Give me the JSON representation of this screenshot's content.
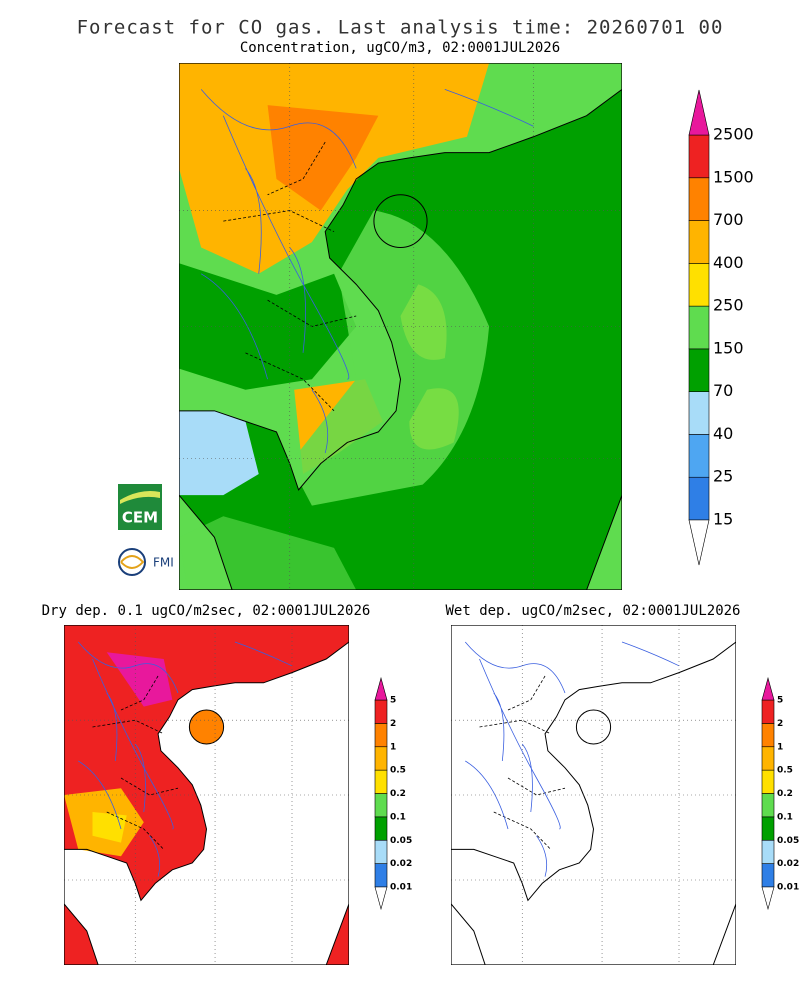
{
  "title": "Forecast for CO gas. Last analysis time: 20260701 00",
  "logos": [
    "CEM",
    "FMI"
  ],
  "panels": [
    {
      "title": "Concentration, ugCO/m3, 02:0001JUL2026",
      "legend": {
        "labels": [
          15,
          25,
          40,
          70,
          150,
          250,
          400,
          700,
          1500,
          2500
        ],
        "colors": [
          "#2f7fe6",
          "#4ea6f2",
          "#a8dcf8",
          "#00a000",
          "#5fdc4f",
          "#ffe000",
          "#ffb400",
          "#ff8200",
          "#ee2222"
        ],
        "over_color": "#e8189c",
        "under_color": "#ffffff"
      }
    },
    {
      "title": "Dry dep. 0.1 ugCO/m2sec, 02:0001JUL2026",
      "legend": {
        "labels": [
          0.01,
          0.02,
          0.05,
          0.1,
          0.2,
          0.5,
          1,
          2,
          5
        ],
        "colors": [
          "#2f7fe6",
          "#a8dcf8",
          "#00a000",
          "#5fdc4f",
          "#ffe000",
          "#ffb400",
          "#ff8200",
          "#ee2222"
        ],
        "over_color": "#e8189c",
        "under_color": "#ffffff"
      }
    },
    {
      "title": "Wet dep. ugCO/m2sec, 02:0001JUL2026",
      "legend": {
        "labels": [
          0.01,
          0.02,
          0.05,
          0.1,
          0.2,
          0.5,
          1,
          2,
          5
        ],
        "colors": [
          "#2f7fe6",
          "#a8dcf8",
          "#00a000",
          "#5fdc4f",
          "#ffe000",
          "#ffb400",
          "#ff8200",
          "#ee2222"
        ],
        "over_color": "#e8189c",
        "under_color": "#ffffff"
      }
    }
  ]
}
